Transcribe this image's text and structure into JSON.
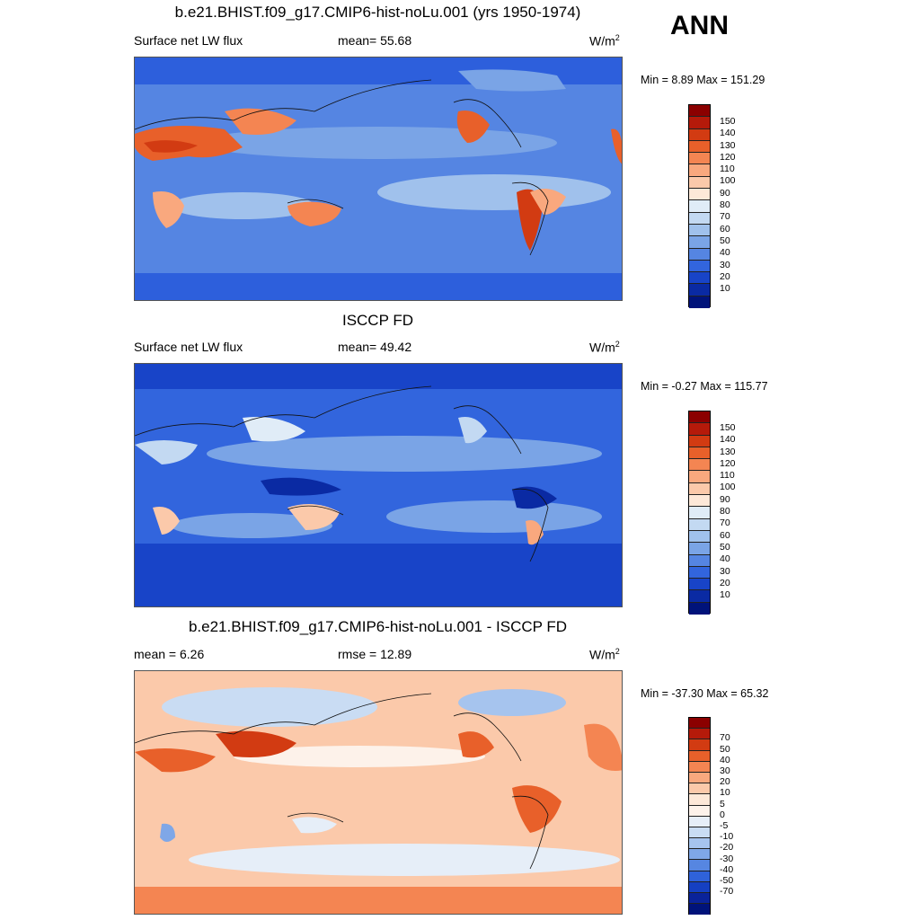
{
  "season": "ANN",
  "panels": [
    {
      "title": "b.e21.BHIST.f09_g17.CMIP6-hist-noLu.001 (yrs 1950-1974)",
      "left_label": "Surface net LW flux",
      "center_label": "mean=  55.68",
      "units": "W/m",
      "units_sup": "2",
      "minmax": "Min =   8.89 Max = 151.29",
      "colorbar": {
        "colors": [
          "#8b0000",
          "#b51a0a",
          "#d23b12",
          "#e8602a",
          "#f48552",
          "#f9a87e",
          "#fbc9aa",
          "#fde8d8",
          "#e0ecf7",
          "#c3d9f2",
          "#a0c1ec",
          "#7aa4e6",
          "#5585e2",
          "#3265dd",
          "#1844c8",
          "#0a2aa3",
          "#00137a"
        ],
        "labels": [
          "150",
          "140",
          "130",
          "120",
          "110",
          "100",
          "90",
          "80",
          "70",
          "60",
          "50",
          "40",
          "30",
          "20",
          "10"
        ]
      }
    },
    {
      "title": "ISCCP FD",
      "left_label": "Surface net LW flux",
      "center_label": "mean=  49.42",
      "units": "W/m",
      "units_sup": "2",
      "minmax": "Min =  -0.27 Max = 115.77",
      "colorbar": {
        "colors": [
          "#8b0000",
          "#b51a0a",
          "#d23b12",
          "#e8602a",
          "#f48552",
          "#f9a87e",
          "#fbc9aa",
          "#fde8d8",
          "#e0ecf7",
          "#c3d9f2",
          "#a0c1ec",
          "#7aa4e6",
          "#5585e2",
          "#3265dd",
          "#1844c8",
          "#0a2aa3",
          "#00137a"
        ],
        "labels": [
          "150",
          "140",
          "130",
          "120",
          "110",
          "100",
          "90",
          "80",
          "70",
          "60",
          "50",
          "40",
          "30",
          "20",
          "10"
        ]
      }
    },
    {
      "title": "b.e21.BHIST.f09_g17.CMIP6-hist-noLu.001 - ISCCP FD",
      "left_label": "mean =   6.26",
      "center_label": "rmse =  12.89",
      "units": "W/m",
      "units_sup": "2",
      "minmax": "Min = -37.30 Max =  65.32",
      "colorbar": {
        "colors": [
          "#8b0000",
          "#b51a0a",
          "#d23b12",
          "#e8602a",
          "#f48552",
          "#f9a87e",
          "#fbc9aa",
          "#fde8d8",
          "#fdf2ea",
          "#e6eef8",
          "#c9dcf3",
          "#a6c4ee",
          "#7fa7e7",
          "#5686e1",
          "#2f62da",
          "#1540c2",
          "#0a239a",
          "#00137a"
        ],
        "labels": [
          "70",
          "50",
          "40",
          "30",
          "20",
          "10",
          "5",
          "0",
          "-5",
          "-10",
          "-20",
          "-30",
          "-40",
          "-50",
          "-70"
        ]
      }
    }
  ]
}
